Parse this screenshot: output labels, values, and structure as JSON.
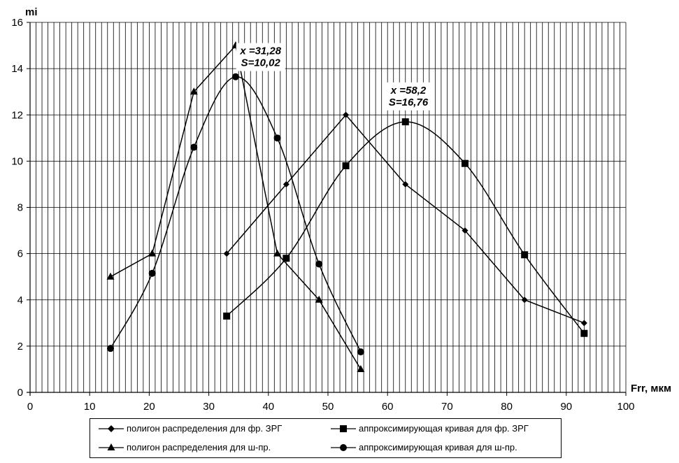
{
  "chart_data": {
    "type": "line",
    "ylabel": "mi",
    "xlabel": "Frr, мкм",
    "xlim": [
      0,
      100
    ],
    "ylim": [
      0,
      16
    ],
    "x_ticks": [
      0,
      10,
      20,
      30,
      40,
      50,
      60,
      70,
      80,
      90,
      100
    ],
    "y_ticks": [
      0,
      2,
      4,
      6,
      8,
      10,
      12,
      14,
      16
    ],
    "grid": "vertical lines every 1 unit, horizontal lines every 2 units",
    "legend_position": "bottom",
    "series": [
      {
        "name": "полигон распределения для фр. ЗРГ",
        "marker": "diamond",
        "smooth": false,
        "points": [
          [
            33,
            6
          ],
          [
            43,
            9
          ],
          [
            53,
            12
          ],
          [
            63,
            9
          ],
          [
            73,
            7
          ],
          [
            83,
            4
          ],
          [
            93,
            3
          ]
        ]
      },
      {
        "name": "аппроксимирующая кривая для фр. ЗРГ",
        "marker": "square",
        "smooth": true,
        "points": [
          [
            33,
            3.3
          ],
          [
            43,
            5.8
          ],
          [
            53,
            9.8
          ],
          [
            63,
            11.7
          ],
          [
            73,
            9.9
          ],
          [
            83,
            5.95
          ],
          [
            93,
            2.55
          ]
        ]
      },
      {
        "name": "полигон распределения для ш-пр.",
        "marker": "triangle",
        "smooth": false,
        "points": [
          [
            13.5,
            5
          ],
          [
            20.5,
            6
          ],
          [
            27.5,
            13
          ],
          [
            34.5,
            15
          ],
          [
            41.5,
            6
          ],
          [
            48.5,
            4
          ],
          [
            55.5,
            1
          ]
        ]
      },
      {
        "name": "аппроксимирующая кривая для ш-пр.",
        "marker": "circle",
        "smooth": true,
        "points": [
          [
            13.5,
            1.9
          ],
          [
            20.5,
            5.15
          ],
          [
            27.5,
            10.6
          ],
          [
            34.5,
            13.65
          ],
          [
            41.5,
            11
          ],
          [
            48.5,
            5.55
          ],
          [
            55.5,
            1.75
          ]
        ]
      }
    ],
    "annotations": [
      {
        "lines": [
          "x =31,28",
          "S=10,02"
        ],
        "anchor": [
          38.7,
          14.5
        ]
      },
      {
        "lines": [
          "x =58,2",
          "S=16,76"
        ],
        "anchor": [
          63.5,
          12.8
        ]
      }
    ]
  }
}
